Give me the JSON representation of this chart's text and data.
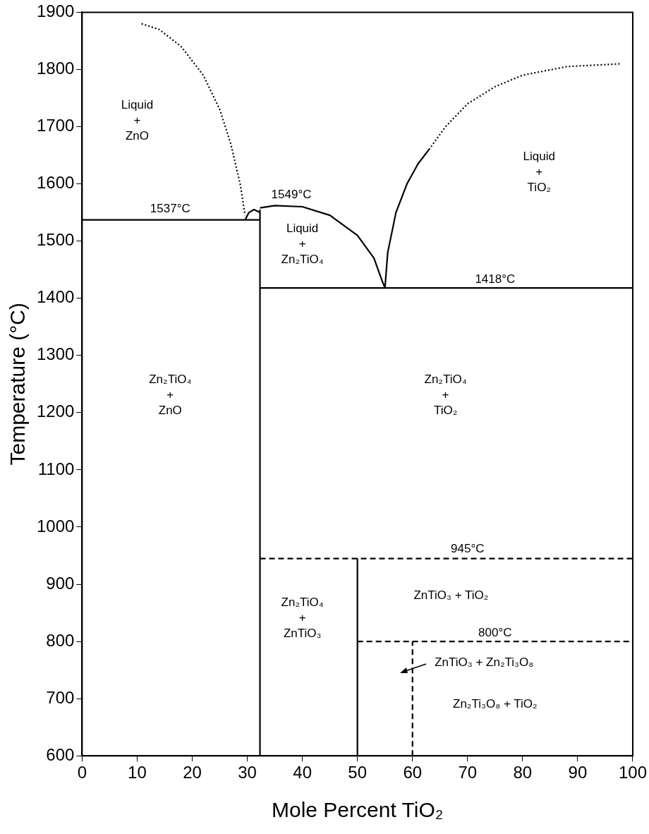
{
  "chart_data": {
    "type": "line",
    "xlabel": "Mole Percent TiO₂",
    "ylabel": "Temperature (°C)",
    "xlim": [
      0,
      100
    ],
    "xticks": [
      0,
      10,
      20,
      30,
      40,
      50,
      60,
      70,
      80,
      90,
      100
    ],
    "ylim": [
      600,
      1900
    ],
    "yticks": [
      600,
      700,
      800,
      900,
      1000,
      1100,
      1200,
      1300,
      1400,
      1500,
      1600,
      1700,
      1800,
      1900
    ],
    "grid": false,
    "legend": false,
    "marker": "none",
    "series": [
      {
        "color": "#000000",
        "line_style": "solid",
        "x": [
          0,
          32.3
        ],
        "values": [
          1537,
          1537
        ]
      },
      {
        "color": "#000000",
        "line_style": "solid",
        "x": [
          32.3,
          100
        ],
        "values": [
          1418,
          1418
        ]
      },
      {
        "color": "#000000",
        "line_style": "solid",
        "x": [
          32.3,
          32.3
        ],
        "values": [
          600,
          1555
        ]
      },
      {
        "color": "#000000",
        "line_style": "dotted",
        "x": [
          10.8,
          14,
          18,
          22,
          25,
          27,
          28.7,
          29.6
        ],
        "values": [
          1880,
          1870,
          1840,
          1790,
          1730,
          1670,
          1600,
          1545
        ]
      },
      {
        "color": "#000000",
        "line_style": "solid",
        "x": [
          29.6,
          30.3,
          31.2,
          32.3
        ],
        "values": [
          1537,
          1550,
          1555,
          1550
        ]
      },
      {
        "color": "#000000",
        "line_style": "solid",
        "x": [
          32.3,
          35,
          40,
          45,
          50,
          53,
          54.5,
          55
        ],
        "values": [
          1558,
          1562,
          1560,
          1545,
          1510,
          1470,
          1430,
          1418
        ]
      },
      {
        "color": "#000000",
        "line_style": "solid",
        "x": [
          55,
          55.5,
          57,
          59,
          61,
          63
        ],
        "values": [
          1418,
          1480,
          1550,
          1600,
          1635,
          1660
        ]
      },
      {
        "color": "#000000",
        "line_style": "dotted",
        "x": [
          63,
          66,
          70,
          75,
          80,
          88,
          98
        ],
        "values": [
          1660,
          1700,
          1740,
          1770,
          1790,
          1805,
          1810
        ]
      },
      {
        "color": "#000000",
        "line_style": "dashed",
        "x": [
          32.3,
          100
        ],
        "values": [
          945,
          945
        ]
      },
      {
        "color": "#000000",
        "line_style": "solid",
        "x": [
          50,
          50
        ],
        "values": [
          600,
          945
        ]
      },
      {
        "color": "#000000",
        "line_style": "dashed",
        "x": [
          50,
          100
        ],
        "values": [
          800,
          800
        ]
      },
      {
        "color": "#000000",
        "line_style": "dashed",
        "x": [
          60,
          60
        ],
        "values": [
          600,
          800
        ]
      }
    ],
    "annotations": [
      "Liquid\n+\nZnO",
      "Liquid\n+\nTiO₂",
      "Liquid\n+\nZn₂TiO₄",
      "1537°C",
      "1549°C",
      "1418°C",
      "Zn₂TiO₄\n+\nZnO",
      "Zn₂TiO₄\n+\nTiO₂",
      "945°C",
      "ZnTiO₃ + TiO₂",
      "Zn₂TiO₄\n+\nZnTiO₃",
      "800°C",
      "ZnTiO₃ + Zn₂Ti₃O₈",
      "Zn₂Ti₃O₈ + TiO₂"
    ]
  }
}
